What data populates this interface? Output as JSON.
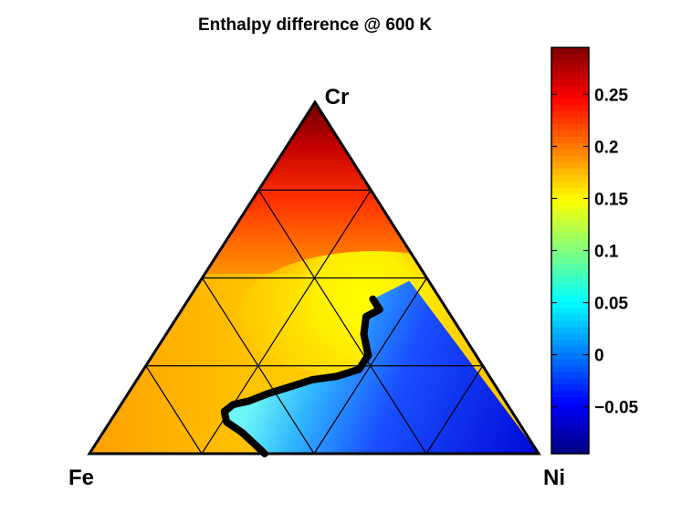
{
  "chart_data": {
    "type": "heatmap",
    "title": "Enthalpy difference @ 600 K",
    "vertices": {
      "top": "Cr",
      "left": "Fe",
      "right": "Ni"
    },
    "colorbar": {
      "range": [
        -0.095,
        0.295
      ],
      "ticks": [
        {
          "value": 0.25,
          "label": "0.25"
        },
        {
          "value": 0.2,
          "label": "0.2"
        },
        {
          "value": 0.15,
          "label": "0.15"
        },
        {
          "value": 0.1,
          "label": "0.1"
        },
        {
          "value": 0.05,
          "label": "0.05"
        },
        {
          "value": 0,
          "label": "0"
        },
        {
          "value": -0.05,
          "label": "−0.05"
        }
      ],
      "colormap": "jet"
    },
    "grid_divisions": 4,
    "zero_contour": [
      {
        "Fe": 0.61,
        "Ni": 0.39,
        "Cr": 0.0
      },
      {
        "Fe": 0.62,
        "Ni": 0.35,
        "Cr": 0.03
      },
      {
        "Fe": 0.63,
        "Ni": 0.31,
        "Cr": 0.06
      },
      {
        "Fe": 0.64,
        "Ni": 0.29,
        "Cr": 0.08
      },
      {
        "Fe": 0.65,
        "Ni": 0.26,
        "Cr": 0.09
      },
      {
        "Fe": 0.64,
        "Ni": 0.24,
        "Cr": 0.12
      },
      {
        "Fe": 0.61,
        "Ni": 0.25,
        "Cr": 0.14
      },
      {
        "Fe": 0.57,
        "Ni": 0.28,
        "Cr": 0.15
      },
      {
        "Fe": 0.52,
        "Ni": 0.31,
        "Cr": 0.17
      },
      {
        "Fe": 0.46,
        "Ni": 0.35,
        "Cr": 0.19
      },
      {
        "Fe": 0.4,
        "Ni": 0.39,
        "Cr": 0.21
      },
      {
        "Fe": 0.34,
        "Ni": 0.44,
        "Cr": 0.22
      },
      {
        "Fe": 0.28,
        "Ni": 0.48,
        "Cr": 0.24
      },
      {
        "Fe": 0.24,
        "Ni": 0.48,
        "Cr": 0.28
      },
      {
        "Fe": 0.22,
        "Ni": 0.44,
        "Cr": 0.34
      },
      {
        "Fe": 0.19,
        "Ni": 0.42,
        "Cr": 0.39
      },
      {
        "Fe": 0.15,
        "Ni": 0.44,
        "Cr": 0.41
      },
      {
        "Fe": 0.15,
        "Ni": 0.41,
        "Cr": 0.44
      }
    ]
  }
}
